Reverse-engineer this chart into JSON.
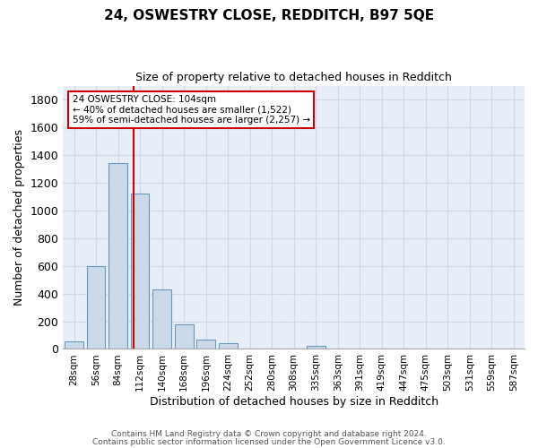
{
  "title1": "24, OSWESTRY CLOSE, REDDITCH, B97 5QE",
  "title2": "Size of property relative to detached houses in Redditch",
  "xlabel": "Distribution of detached houses by size in Redditch",
  "ylabel": "Number of detached properties",
  "bar_labels": [
    "28sqm",
    "56sqm",
    "84sqm",
    "112sqm",
    "140sqm",
    "168sqm",
    "196sqm",
    "224sqm",
    "252sqm",
    "280sqm",
    "308sqm",
    "335sqm",
    "363sqm",
    "391sqm",
    "419sqm",
    "447sqm",
    "475sqm",
    "503sqm",
    "531sqm",
    "559sqm",
    "587sqm"
  ],
  "bar_values": [
    55,
    600,
    1340,
    1120,
    430,
    175,
    65,
    40,
    0,
    0,
    0,
    20,
    0,
    0,
    0,
    0,
    0,
    0,
    0,
    0,
    0
  ],
  "bar_color": "#ccd9e8",
  "bar_edge_color": "#6699bb",
  "annotation_text": "24 OSWESTRY CLOSE: 104sqm\n← 40% of detached houses are smaller (1,522)\n59% of semi-detached houses are larger (2,257) →",
  "annotation_box_color": "#ffffff",
  "annotation_box_edge_color": "#cc0000",
  "ylim": [
    0,
    1900
  ],
  "yticks": [
    0,
    200,
    400,
    600,
    800,
    1000,
    1200,
    1400,
    1600,
    1800
  ],
  "grid_color": "#d0d8e8",
  "background_color": "#e8eef8",
  "footer1": "Contains HM Land Registry data © Crown copyright and database right 2024.",
  "footer2": "Contains public sector information licensed under the Open Government Licence v3.0."
}
